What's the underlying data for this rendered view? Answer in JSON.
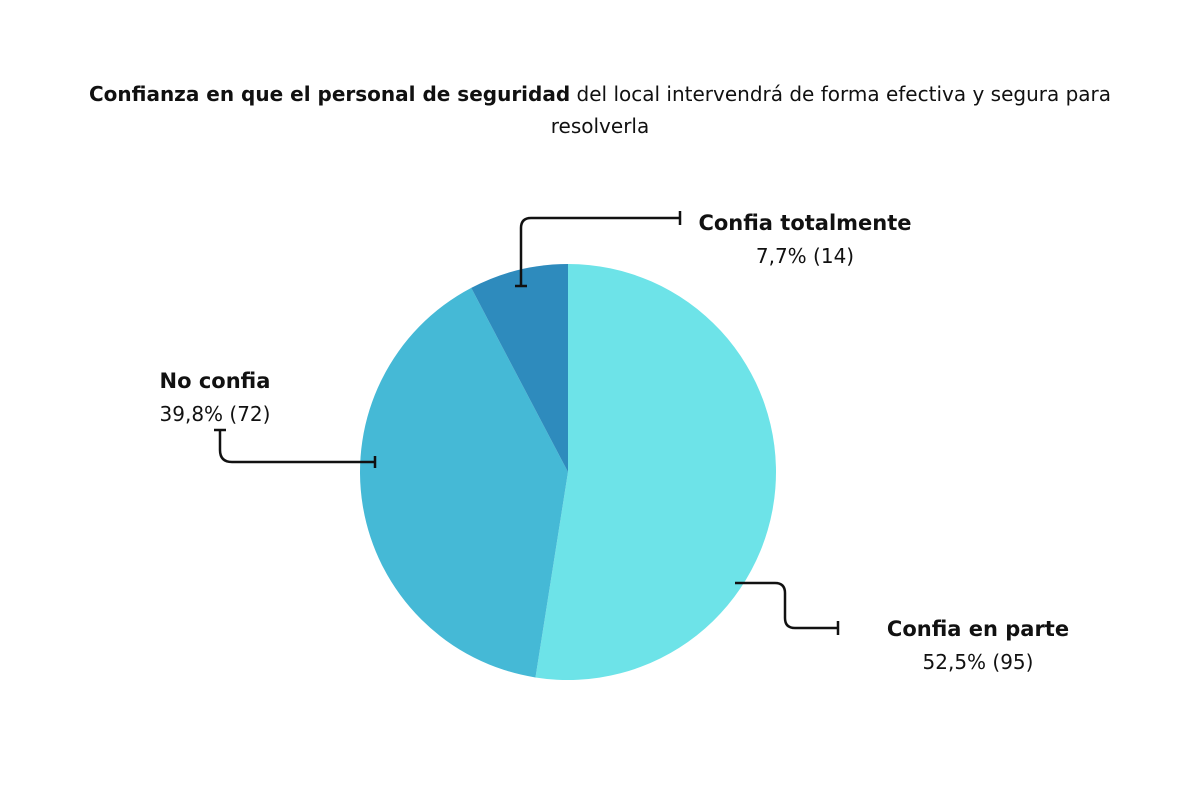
{
  "chart_data": {
    "type": "pie",
    "title": [
      "Confianza en que el personal de seguridad",
      "del local intervendrá de forma efectiva y segura para resolverla"
    ],
    "categories": [
      "Confia en parte",
      "No confia",
      "Confia totalmente"
    ],
    "values": [
      52.5,
      39.8,
      7.7
    ],
    "value_labels": [
      "52,5% (95)",
      "39,8% (72)",
      "7,7% (14)"
    ],
    "colors": [
      "#6de3e8",
      "#45b9d6",
      "#2e8bbd"
    ]
  }
}
